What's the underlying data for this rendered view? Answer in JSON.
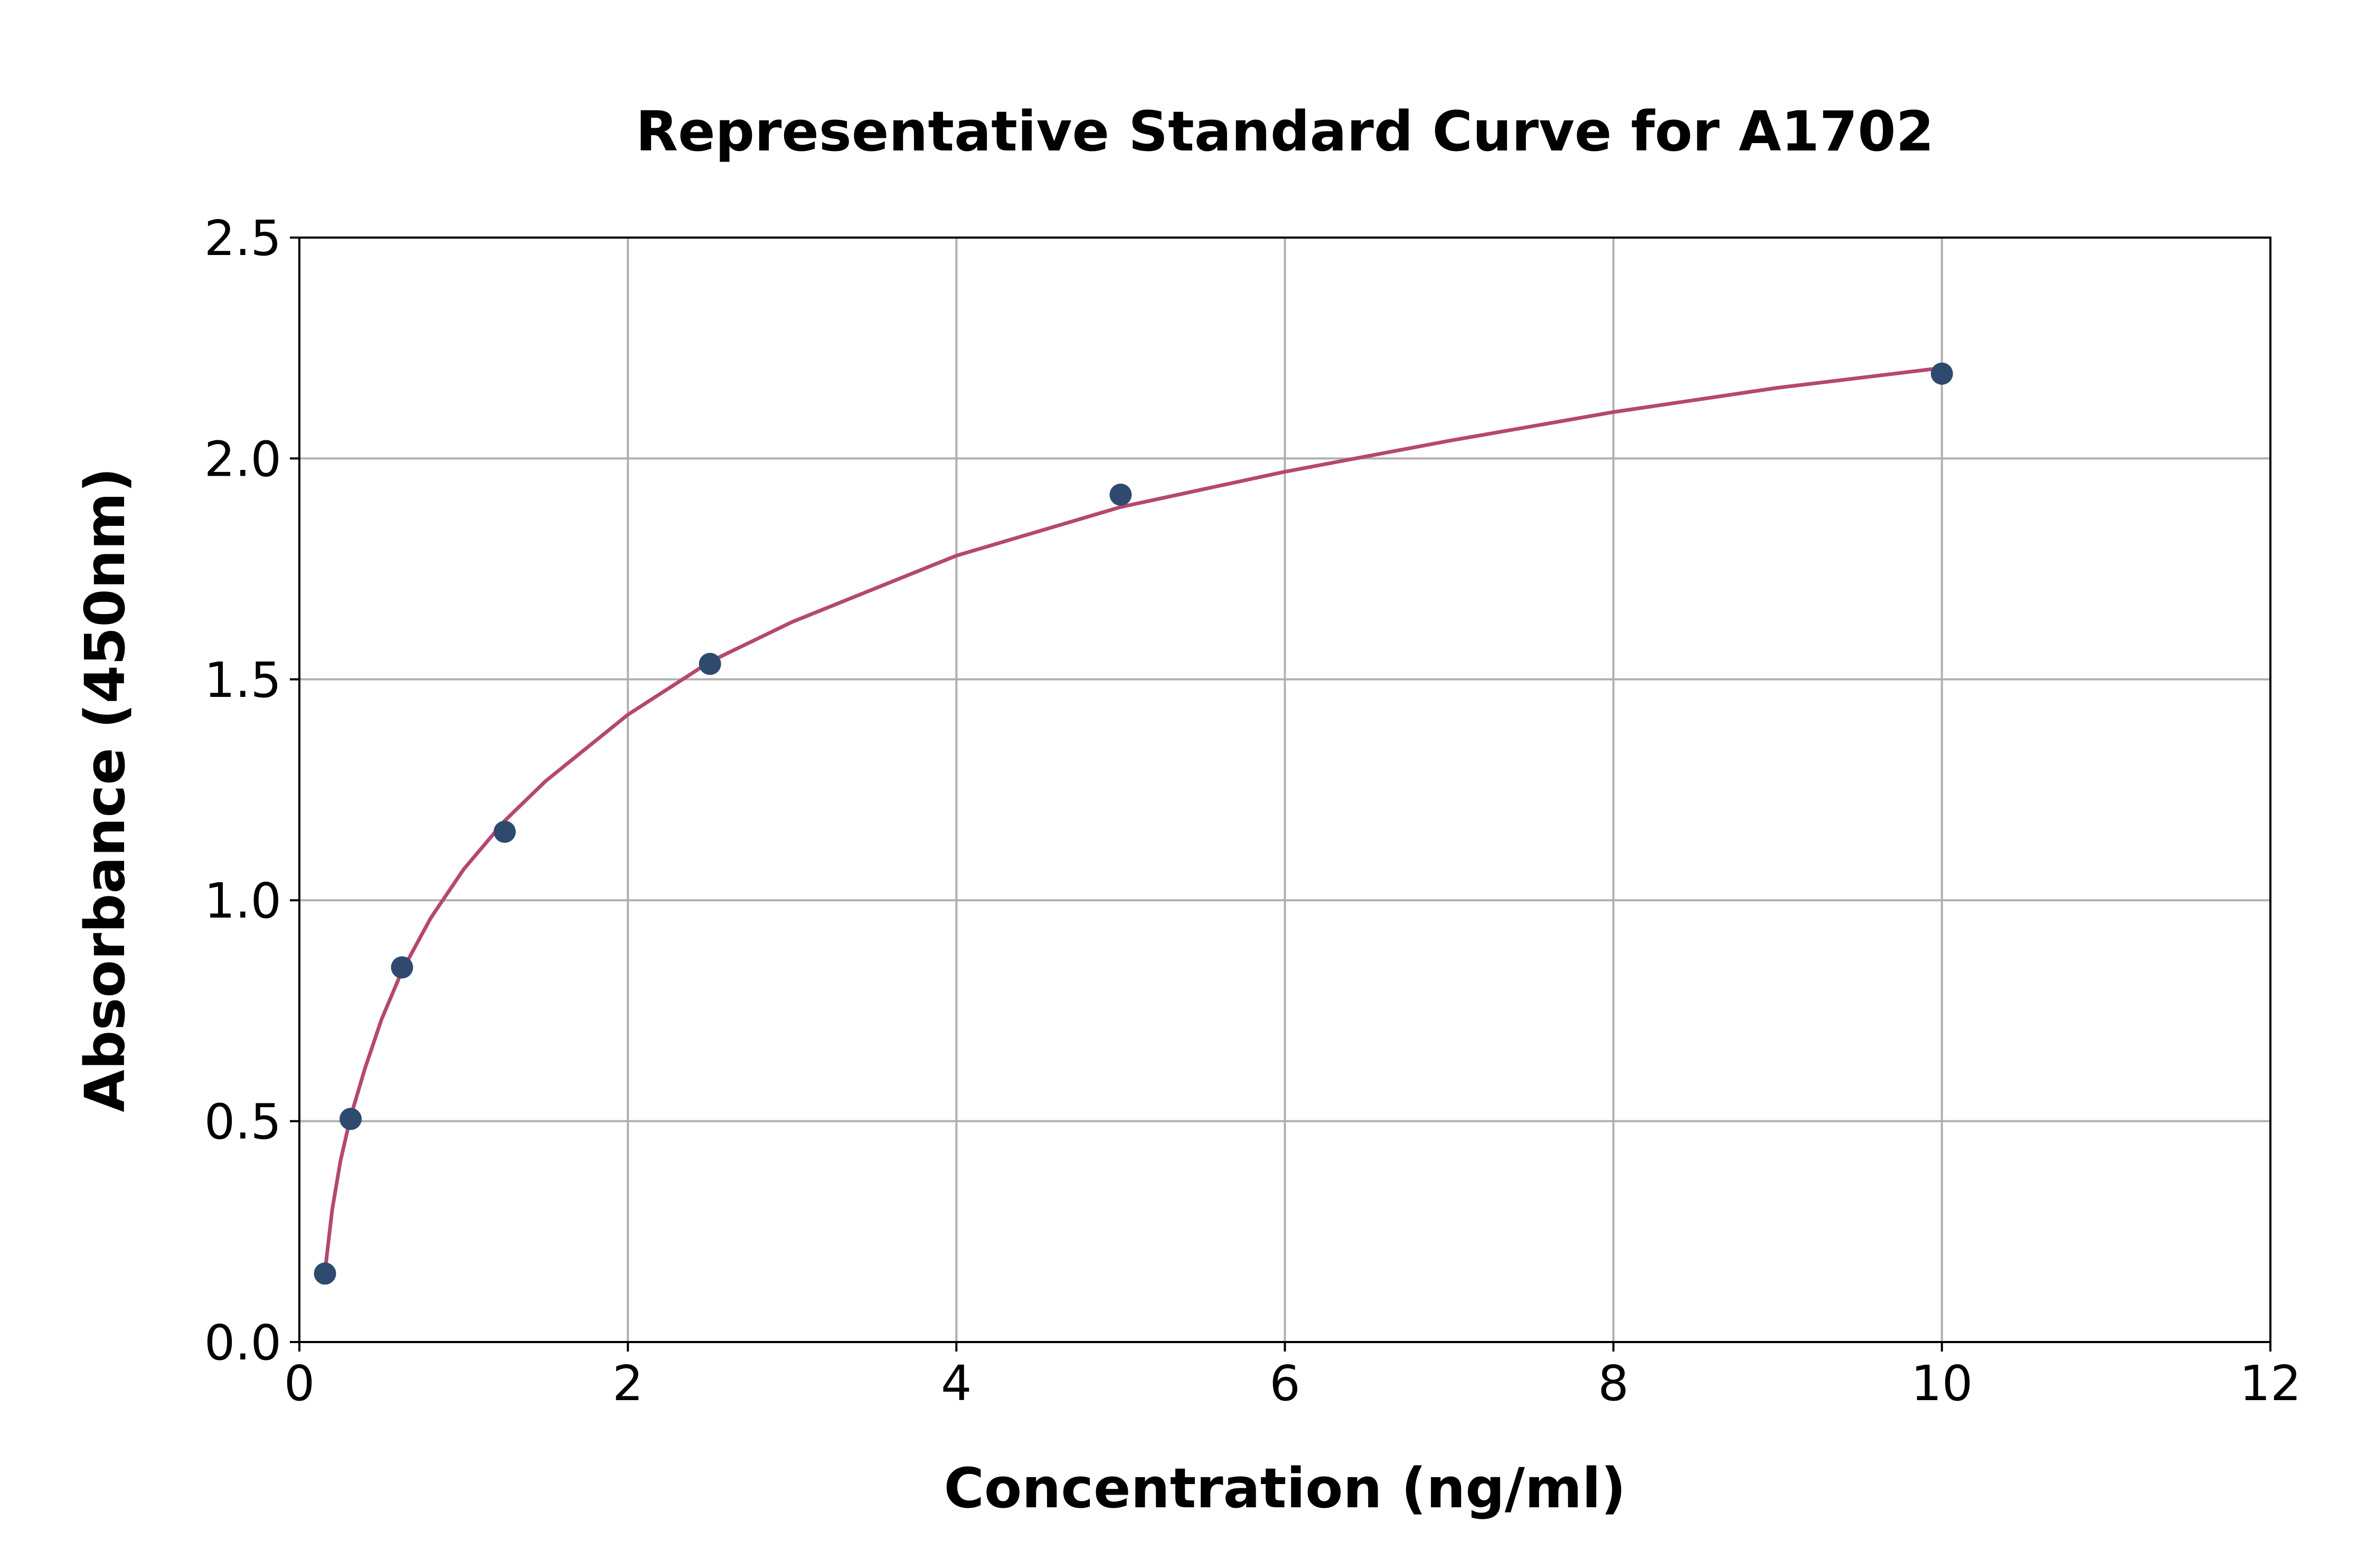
{
  "chart_data": {
    "type": "scatter",
    "title": "Representative Standard Curve for A1702",
    "xlabel": "Concentration (ng/ml)",
    "ylabel": "Absorbance (450nm)",
    "xlim": [
      0,
      12
    ],
    "ylim": [
      0.0,
      2.5
    ],
    "x_ticks": [
      0,
      2,
      4,
      6,
      8,
      10,
      12
    ],
    "x_tick_labels": [
      "0",
      "2",
      "4",
      "6",
      "8",
      "10",
      "12"
    ],
    "y_ticks": [
      0.0,
      0.5,
      1.0,
      1.5,
      2.0,
      2.5
    ],
    "y_tick_labels": [
      "0.0",
      "0.5",
      "1.0",
      "1.5",
      "2.0",
      "2.5"
    ],
    "grid": true,
    "series": [
      {
        "kind": "points",
        "color": "#2e4a6e",
        "x": [
          0.156,
          0.312,
          0.625,
          1.25,
          2.5,
          5.0,
          10.0
        ],
        "y": [
          0.155,
          0.505,
          0.848,
          1.155,
          1.535,
          1.918,
          2.192
        ]
      },
      {
        "kind": "fit-curve",
        "color": "#b5486f",
        "x": [
          0.156,
          0.2,
          0.25,
          0.312,
          0.4,
          0.5,
          0.625,
          0.8,
          1.0,
          1.25,
          1.5,
          2.0,
          2.5,
          3.0,
          4.0,
          5.0,
          6.0,
          7.0,
          8.0,
          9.0,
          10.0
        ],
        "y": [
          0.16,
          0.3,
          0.41,
          0.51,
          0.62,
          0.73,
          0.84,
          0.96,
          1.07,
          1.18,
          1.27,
          1.42,
          1.54,
          1.63,
          1.78,
          1.89,
          1.97,
          2.04,
          2.105,
          2.16,
          2.205
        ]
      }
    ]
  }
}
